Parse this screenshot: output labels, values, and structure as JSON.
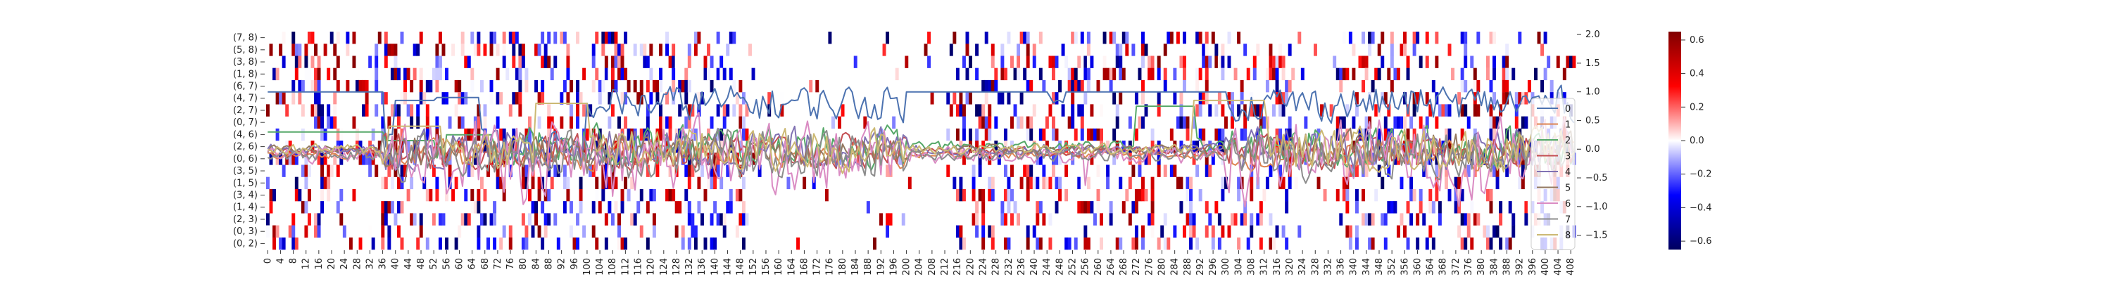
{
  "chart_data": {
    "type": "heatmap",
    "title": "",
    "xlabel": "",
    "ylabel": "",
    "heatmap": {
      "rows": [
        "(7, 8)",
        "(5, 8)",
        "(3, 8)",
        "(1, 8)",
        "(6, 7)",
        "(4, 7)",
        "(2, 7)",
        "(0, 7)",
        "(4, 6)",
        "(2, 6)",
        "(0, 6)",
        "(3, 5)",
        "(1, 5)",
        "(3, 4)",
        "(1, 4)",
        "(2, 3)",
        "(0, 3)",
        "(0, 2)"
      ],
      "n_columns": 410,
      "x_tick_labels": [
        "0",
        "4",
        "8",
        "12",
        "16",
        "20",
        "24",
        "28",
        "32",
        "36",
        "40",
        "44",
        "48",
        "52",
        "56",
        "60",
        "64",
        "68",
        "72",
        "76",
        "80",
        "84",
        "88",
        "92",
        "96",
        "100",
        "104",
        "108",
        "112",
        "116",
        "120",
        "124",
        "128",
        "132",
        "136",
        "140",
        "144",
        "148",
        "152",
        "156",
        "160",
        "164",
        "168",
        "172",
        "176",
        "180",
        "184",
        "188",
        "192",
        "196",
        "200",
        "204",
        "208",
        "212",
        "216",
        "220",
        "224",
        "228",
        "232",
        "236",
        "240",
        "244",
        "248",
        "252",
        "256",
        "260",
        "264",
        "268",
        "272",
        "276",
        "280",
        "284",
        "288",
        "292",
        "296",
        "300",
        "304",
        "308",
        "312",
        "316",
        "320",
        "324",
        "328",
        "332",
        "336",
        "340",
        "344",
        "348",
        "352",
        "356",
        "360",
        "364",
        "368",
        "372",
        "376",
        "380",
        "384",
        "388",
        "392",
        "396",
        "400",
        "404",
        "408"
      ],
      "colormap": [
        "#00005e",
        "#0000ff",
        "#ffffff",
        "#ff0000",
        "#800000"
      ],
      "vmin": -0.65,
      "vmax": 0.65,
      "colorbar_ticks": [
        "0.6",
        "0.4",
        "0.2",
        "0.0",
        "−0.2",
        "−0.4",
        "−0.6"
      ],
      "colorbar_tick_values": [
        0.6,
        0.4,
        0.2,
        0.0,
        -0.2,
        -0.4,
        -0.6
      ]
    },
    "lines": {
      "y_axis_side": "right",
      "ylim": [
        -1.75,
        2.05
      ],
      "y_ticks": [
        "2.0",
        "1.5",
        "1.0",
        "0.5",
        "0.0",
        "−0.5",
        "−1.0",
        "−1.5"
      ],
      "y_tick_values": [
        2.0,
        1.5,
        1.0,
        0.5,
        0.0,
        -0.5,
        -1.0,
        -1.5
      ],
      "series": [
        {
          "name": "0",
          "color": "#4c72b0",
          "base": 0.0,
          "amp": 0.25
        },
        {
          "name": "1",
          "color": "#dd8452",
          "base": -0.1,
          "amp": 0.2
        },
        {
          "name": "2",
          "color": "#55a868",
          "base": 0.05,
          "amp": 0.3
        },
        {
          "name": "3",
          "color": "#c44e52",
          "base": -0.05,
          "amp": 0.25
        },
        {
          "name": "4",
          "color": "#8172b3",
          "base": 0.0,
          "amp": 0.3
        },
        {
          "name": "5",
          "color": "#937860",
          "base": 0.0,
          "amp": 0.25
        },
        {
          "name": "6",
          "color": "#da8bc3",
          "base": -0.1,
          "amp": 0.5
        },
        {
          "name": "7",
          "color": "#8c8c8c",
          "base": -0.1,
          "amp": 0.35
        },
        {
          "name": "8",
          "color": "#ccb974",
          "base": 0.0,
          "amp": 0.3
        }
      ],
      "segments_series0": [
        {
          "x0": 0,
          "x1": 36,
          "y": 1.0
        },
        {
          "x0": 40,
          "x1": 52,
          "y": 0.85
        },
        {
          "x0": 52,
          "x1": 66,
          "y": 0.9
        },
        {
          "x0": 200,
          "x1": 244,
          "y": 1.0
        },
        {
          "x0": 250,
          "x1": 300,
          "y": 1.0
        }
      ],
      "segments_series2": [
        {
          "x0": 0,
          "x1": 36,
          "y": 0.3
        },
        {
          "x0": 36,
          "x1": 52,
          "y": 0.15
        },
        {
          "x0": 56,
          "x1": 70,
          "y": 0.25
        },
        {
          "x0": 272,
          "x1": 290,
          "y": 0.75
        }
      ],
      "segments_series8": [
        {
          "x0": 38,
          "x1": 54,
          "y": 0.4
        },
        {
          "x0": 84,
          "x1": 100,
          "y": 0.8
        },
        {
          "x0": 290,
          "x1": 312,
          "y": 0.85
        }
      ]
    },
    "legend_position": "right"
  }
}
